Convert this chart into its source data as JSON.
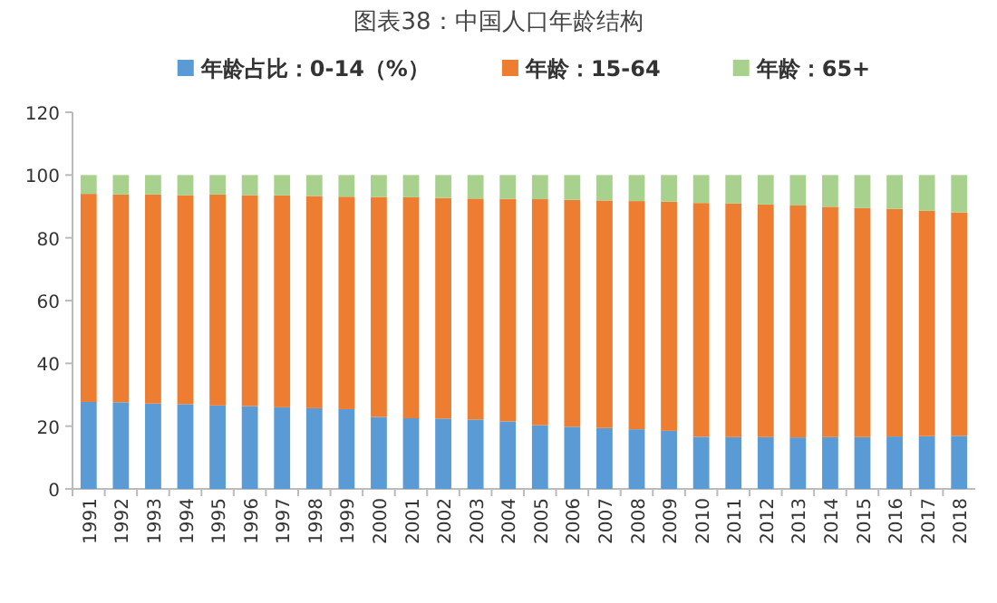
{
  "chart_data": {
    "type": "bar",
    "stacked": true,
    "title": "图表38：中国人口年龄结构",
    "categories": [
      "1991",
      "1992",
      "1993",
      "1994",
      "1995",
      "1996",
      "1997",
      "1998",
      "1999",
      "2000",
      "2001",
      "2002",
      "2003",
      "2004",
      "2005",
      "2006",
      "2007",
      "2008",
      "2009",
      "2010",
      "2011",
      "2012",
      "2013",
      "2014",
      "2015",
      "2016",
      "2017",
      "2018"
    ],
    "series": [
      {
        "name": "年龄占比：0-14（%）",
        "color": "#5b9bd5",
        "values": [
          27.7,
          27.6,
          27.2,
          27.0,
          26.6,
          26.4,
          26.0,
          25.7,
          25.4,
          22.9,
          22.5,
          22.4,
          22.1,
          21.5,
          20.3,
          19.8,
          19.4,
          19.0,
          18.5,
          16.6,
          16.5,
          16.5,
          16.4,
          16.5,
          16.5,
          16.7,
          16.8,
          16.9
        ]
      },
      {
        "name": "年龄：15-64",
        "color": "#ed7d31",
        "values": [
          66.3,
          66.2,
          66.6,
          66.6,
          67.2,
          67.2,
          67.5,
          67.6,
          67.7,
          70.1,
          70.4,
          70.3,
          70.4,
          70.9,
          72.0,
          72.3,
          72.5,
          72.7,
          73.0,
          74.5,
          74.4,
          74.1,
          73.9,
          73.4,
          73.0,
          72.5,
          71.8,
          71.2
        ]
      },
      {
        "name": "年龄：65+",
        "color": "#a9d18e",
        "values": [
          6.0,
          6.2,
          6.2,
          6.4,
          6.2,
          6.4,
          6.5,
          6.7,
          6.9,
          7.0,
          7.1,
          7.3,
          7.5,
          7.6,
          7.7,
          7.9,
          8.1,
          8.3,
          8.5,
          8.9,
          9.1,
          9.4,
          9.7,
          10.1,
          10.5,
          10.8,
          11.4,
          11.9
        ]
      }
    ],
    "ylim": [
      0,
      120
    ],
    "yticks": [
      0,
      20,
      40,
      60,
      80,
      100,
      120
    ],
    "legend": "top"
  }
}
